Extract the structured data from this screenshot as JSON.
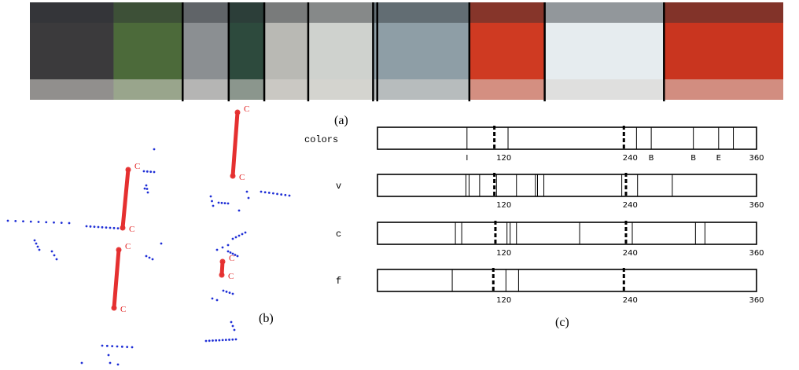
{
  "figure": {
    "panel_labels": {
      "a": "(a)",
      "b": "(b)",
      "c": "(c)"
    },
    "colors": {
      "segment": "#e53030",
      "points": "#1f2fd6",
      "bar_stroke": "#000000"
    }
  },
  "panorama": {
    "divider_angles_deg": [
      73,
      95,
      112,
      133,
      164,
      166,
      210,
      246,
      303
    ],
    "regions": [
      {
        "from": 0,
        "to": 40,
        "color": "#3b3a3c"
      },
      {
        "from": 40,
        "to": 73,
        "color": "#4c6a3a"
      },
      {
        "from": 73,
        "to": 95,
        "color": "#8b8f92"
      },
      {
        "from": 95,
        "to": 112,
        "color": "#2d4a3d"
      },
      {
        "from": 112,
        "to": 133,
        "color": "#b9b9b4"
      },
      {
        "from": 133,
        "to": 164,
        "color": "#cfd2ce"
      },
      {
        "from": 164,
        "to": 210,
        "color": "#8e9ea6"
      },
      {
        "from": 210,
        "to": 246,
        "color": "#cf3a22"
      },
      {
        "from": 246,
        "to": 303,
        "color": "#e6ecef"
      },
      {
        "from": 303,
        "to": 360,
        "color": "#c9351f"
      }
    ]
  },
  "map_view": {
    "corner_label": "C",
    "segments": [
      {
        "x1": 302,
        "y1": 143,
        "x2": 296,
        "y2": 224
      },
      {
        "x1": 163,
        "y1": 216,
        "x2": 156,
        "y2": 290
      },
      {
        "x1": 151,
        "y1": 318,
        "x2": 145,
        "y2": 392
      },
      {
        "x1": 283,
        "y1": 333,
        "x2": 282,
        "y2": 350
      }
    ]
  },
  "chart_data": {
    "type": "bar",
    "x_range": [
      0,
      360
    ],
    "rows": [
      {
        "label": "colors",
        "ticks": [
          "120",
          "240",
          "360"
        ],
        "boundaries": [
          85,
          124,
          246,
          260,
          300,
          324,
          338
        ],
        "letters": [
          {
            "at": 85,
            "text": "I"
          },
          {
            "at": 260,
            "text": "B"
          },
          {
            "at": 300,
            "text": "B"
          },
          {
            "at": 324,
            "text": "E"
          }
        ]
      },
      {
        "label": "v",
        "ticks": [
          "120",
          "240",
          "360"
        ],
        "boundaries": [
          84,
          87,
          97,
          113,
          132,
          150,
          152,
          158,
          232,
          247,
          280
        ]
      },
      {
        "label": "c",
        "ticks": [
          "120",
          "240",
          "360"
        ],
        "boundaries": [
          74,
          80,
          123,
          126,
          132,
          192,
          242,
          302,
          311
        ]
      },
      {
        "label": "f",
        "ticks": [
          "120",
          "240",
          "360"
        ],
        "boundaries": [
          71,
          122,
          134
        ]
      }
    ],
    "dashed_positions": [
      [
        111,
        234
      ],
      [
        111,
        236
      ],
      [
        112,
        236
      ],
      [
        110,
        234
      ]
    ]
  }
}
